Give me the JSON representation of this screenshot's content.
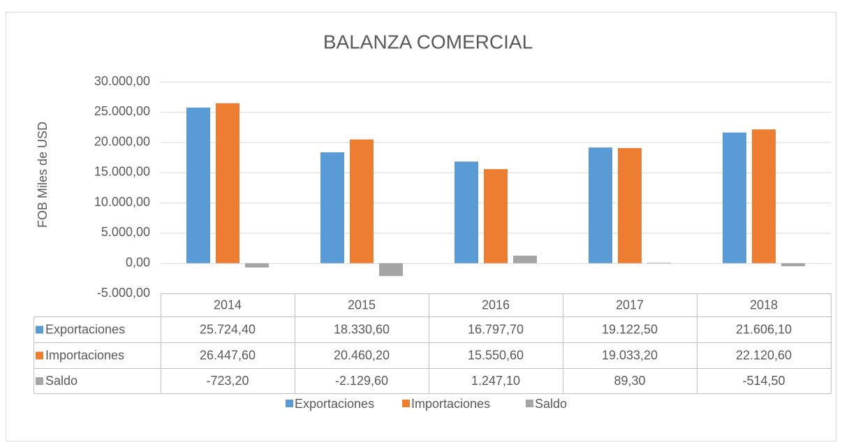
{
  "chart_data": {
    "type": "bar",
    "title": "BALANZA COMERCIAL",
    "y_label": "FOB Miles de USD",
    "categories": [
      "2014",
      "2015",
      "2016",
      "2017",
      "2018"
    ],
    "series": [
      {
        "name": "Exportaciones",
        "color": "#5b9bd5",
        "values": [
          25724.4,
          18330.6,
          16797.7,
          19122.5,
          21606.1
        ],
        "value_labels": [
          "25.724,40",
          "18.330,60",
          "16.797,70",
          "19.122,50",
          "21.606,10"
        ]
      },
      {
        "name": "Importaciones",
        "color": "#ed7d31",
        "values": [
          26447.6,
          20460.2,
          15550.6,
          19033.2,
          22120.6
        ],
        "value_labels": [
          "26.447,60",
          "20.460,20",
          "15.550,60",
          "19.033,20",
          "22.120,60"
        ]
      },
      {
        "name": "Saldo",
        "color": "#a5a5a5",
        "values": [
          -723.2,
          -2129.6,
          1247.1,
          89.3,
          -514.5
        ],
        "value_labels": [
          "-723,20",
          "-2.129,60",
          "1.247,10",
          "89,30",
          "-514,50"
        ]
      }
    ],
    "ylim": [
      -5000,
      30000
    ],
    "yticks": [
      {
        "value": -5000,
        "label": "-5.000,00"
      },
      {
        "value": 0,
        "label": "0,00"
      },
      {
        "value": 5000,
        "label": "5.000,00"
      },
      {
        "value": 10000,
        "label": "10.000,00"
      },
      {
        "value": 15000,
        "label": "15.000,00"
      },
      {
        "value": 20000,
        "label": "20.000,00"
      },
      {
        "value": 25000,
        "label": "25.000,00"
      },
      {
        "value": 30000,
        "label": "30.000,00"
      }
    ],
    "grid": true,
    "legend": "bottom"
  }
}
